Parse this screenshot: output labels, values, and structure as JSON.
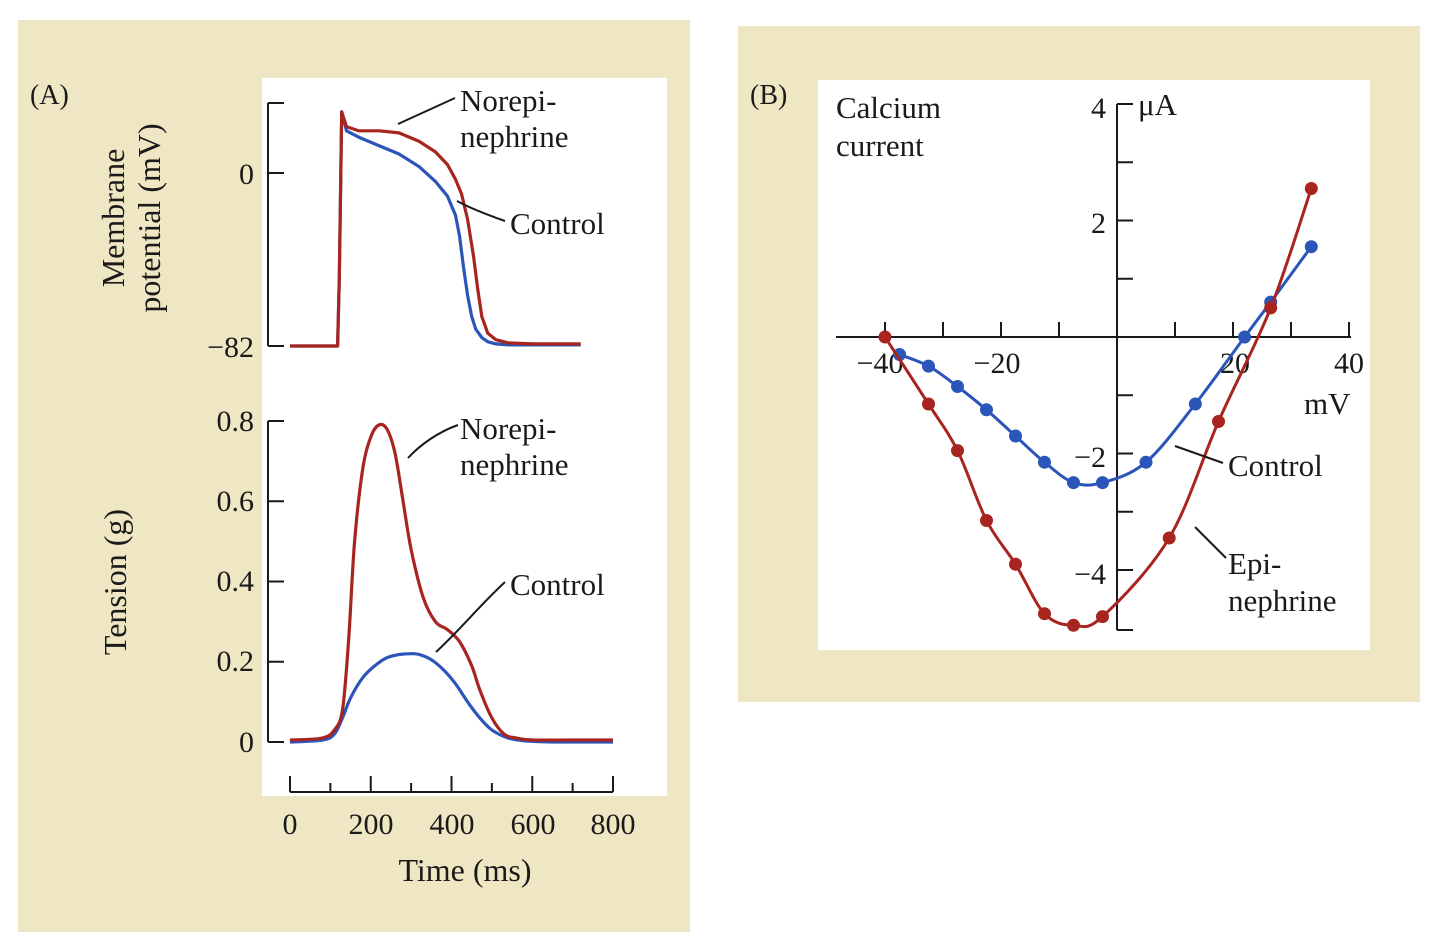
{
  "colors": {
    "panel_bg": "#efe7c3",
    "plot_bg": "#ffffff",
    "red_series": "#a8251f",
    "blue_series": "#2b55b8",
    "axis": "#1a1a1a"
  },
  "chart_data": [
    {
      "id": "A_top",
      "panel_label": "(A)",
      "type": "line",
      "ylabel_lines": [
        "Membrane",
        "potential (mV)"
      ],
      "xlim": [
        0,
        800
      ],
      "ylim": [
        -82,
        30
      ],
      "yticks": [
        0,
        -82
      ],
      "ytick_labels": [
        "0",
        "−82"
      ],
      "series": [
        {
          "name": "Norepi-nephrine",
          "label_lines": [
            "Norepi-",
            "nephrine"
          ],
          "color": "red",
          "x": [
            0,
            118,
            122,
            128,
            140,
            170,
            220,
            270,
            320,
            360,
            390,
            410,
            425,
            440,
            455,
            465,
            475,
            490,
            510,
            540,
            600,
            700,
            720
          ],
          "y": [
            -82,
            -82,
            -50,
            29,
            22,
            20,
            20,
            19,
            15,
            10,
            4,
            -3,
            -10,
            -22,
            -40,
            -55,
            -68,
            -76,
            -79,
            -80.5,
            -81,
            -81,
            -81
          ]
        },
        {
          "name": "Control",
          "label_lines": [
            "Control"
          ],
          "color": "blue",
          "x": [
            0,
            118,
            122,
            128,
            140,
            170,
            220,
            270,
            320,
            360,
            390,
            410,
            420,
            430,
            440,
            450,
            460,
            475,
            490,
            510,
            540,
            600,
            700,
            720
          ],
          "y": [
            -82,
            -82,
            -50,
            29,
            20,
            17,
            13,
            9,
            3,
            -4,
            -11,
            -20,
            -30,
            -45,
            -58,
            -68,
            -74,
            -78,
            -80,
            -81,
            -81.5,
            -81.5,
            -81.5,
            -81.5
          ]
        }
      ]
    },
    {
      "id": "A_bottom",
      "type": "line",
      "xlabel": "Time (ms)",
      "ylabel": "Tension (g)",
      "xlim": [
        0,
        800
      ],
      "ylim": [
        0,
        0.8
      ],
      "xticks": [
        0,
        200,
        400,
        600,
        800
      ],
      "yticks": [
        0,
        0.2,
        0.4,
        0.6,
        0.8
      ],
      "ytick_labels": [
        "0",
        "0.2",
        "0.4",
        "0.6",
        "0.8"
      ],
      "series": [
        {
          "name": "Norepi-nephrine",
          "label_lines": [
            "Norepi-",
            "nephrine"
          ],
          "color": "red",
          "x": [
            0,
            80,
            110,
            130,
            145,
            160,
            180,
            200,
            220,
            240,
            260,
            280,
            300,
            330,
            360,
            390,
            420,
            450,
            470,
            500,
            530,
            560,
            600,
            700,
            800
          ],
          "y": [
            0.005,
            0.01,
            0.03,
            0.08,
            0.25,
            0.5,
            0.68,
            0.76,
            0.79,
            0.78,
            0.72,
            0.6,
            0.48,
            0.36,
            0.3,
            0.28,
            0.25,
            0.19,
            0.13,
            0.06,
            0.02,
            0.01,
            0.005,
            0.005,
            0.005
          ]
        },
        {
          "name": "Control",
          "label_lines": [
            "Control"
          ],
          "color": "blue",
          "x": [
            0,
            80,
            110,
            130,
            150,
            180,
            210,
            240,
            270,
            300,
            320,
            350,
            380,
            410,
            440,
            470,
            500,
            540,
            580,
            650,
            800
          ],
          "y": [
            0,
            0.005,
            0.02,
            0.06,
            0.11,
            0.16,
            0.19,
            0.21,
            0.218,
            0.22,
            0.218,
            0.205,
            0.18,
            0.145,
            0.1,
            0.06,
            0.03,
            0.01,
            0.003,
            0,
            0
          ]
        }
      ]
    },
    {
      "id": "B",
      "panel_label": "(B)",
      "type": "line",
      "title_lines": [
        "Calcium",
        "current"
      ],
      "xlabel": "mV",
      "ylabel": "μA",
      "xlim": [
        -45,
        40
      ],
      "ylim": [
        -5,
        4
      ],
      "xticks": [
        -40,
        -20,
        20,
        40
      ],
      "xtick_labels": [
        "−40",
        "−20",
        "20",
        "40"
      ],
      "yticks": [
        4,
        2,
        -2,
        -4
      ],
      "ytick_labels": [
        "4",
        "2",
        "−2",
        "−4"
      ],
      "series": [
        {
          "name": "Control",
          "label_lines": [
            "Control"
          ],
          "color": "blue",
          "x": [
            -37.5,
            -32.5,
            -27.5,
            -22.5,
            -17.5,
            -12.5,
            -7.5,
            -2.5,
            5,
            13.5,
            22,
            26.5,
            33.5
          ],
          "y": [
            -0.3,
            -0.5,
            -0.85,
            -1.25,
            -1.7,
            -2.15,
            -2.5,
            -2.5,
            -2.15,
            -1.15,
            0,
            0.6,
            1.55
          ]
        },
        {
          "name": "Epi-nephrine",
          "label_lines": [
            "Epi-",
            "nephrine"
          ],
          "color": "red",
          "x": [
            -40,
            -32.5,
            -27.5,
            -22.5,
            -17.5,
            -12.5,
            -7.5,
            -2.5,
            9,
            17.5,
            26.5,
            33.5
          ],
          "y": [
            0,
            -1.15,
            -1.95,
            -3.15,
            -3.9,
            -4.75,
            -4.95,
            -4.8,
            -3.45,
            -1.45,
            0.5,
            2.55
          ]
        }
      ]
    }
  ]
}
